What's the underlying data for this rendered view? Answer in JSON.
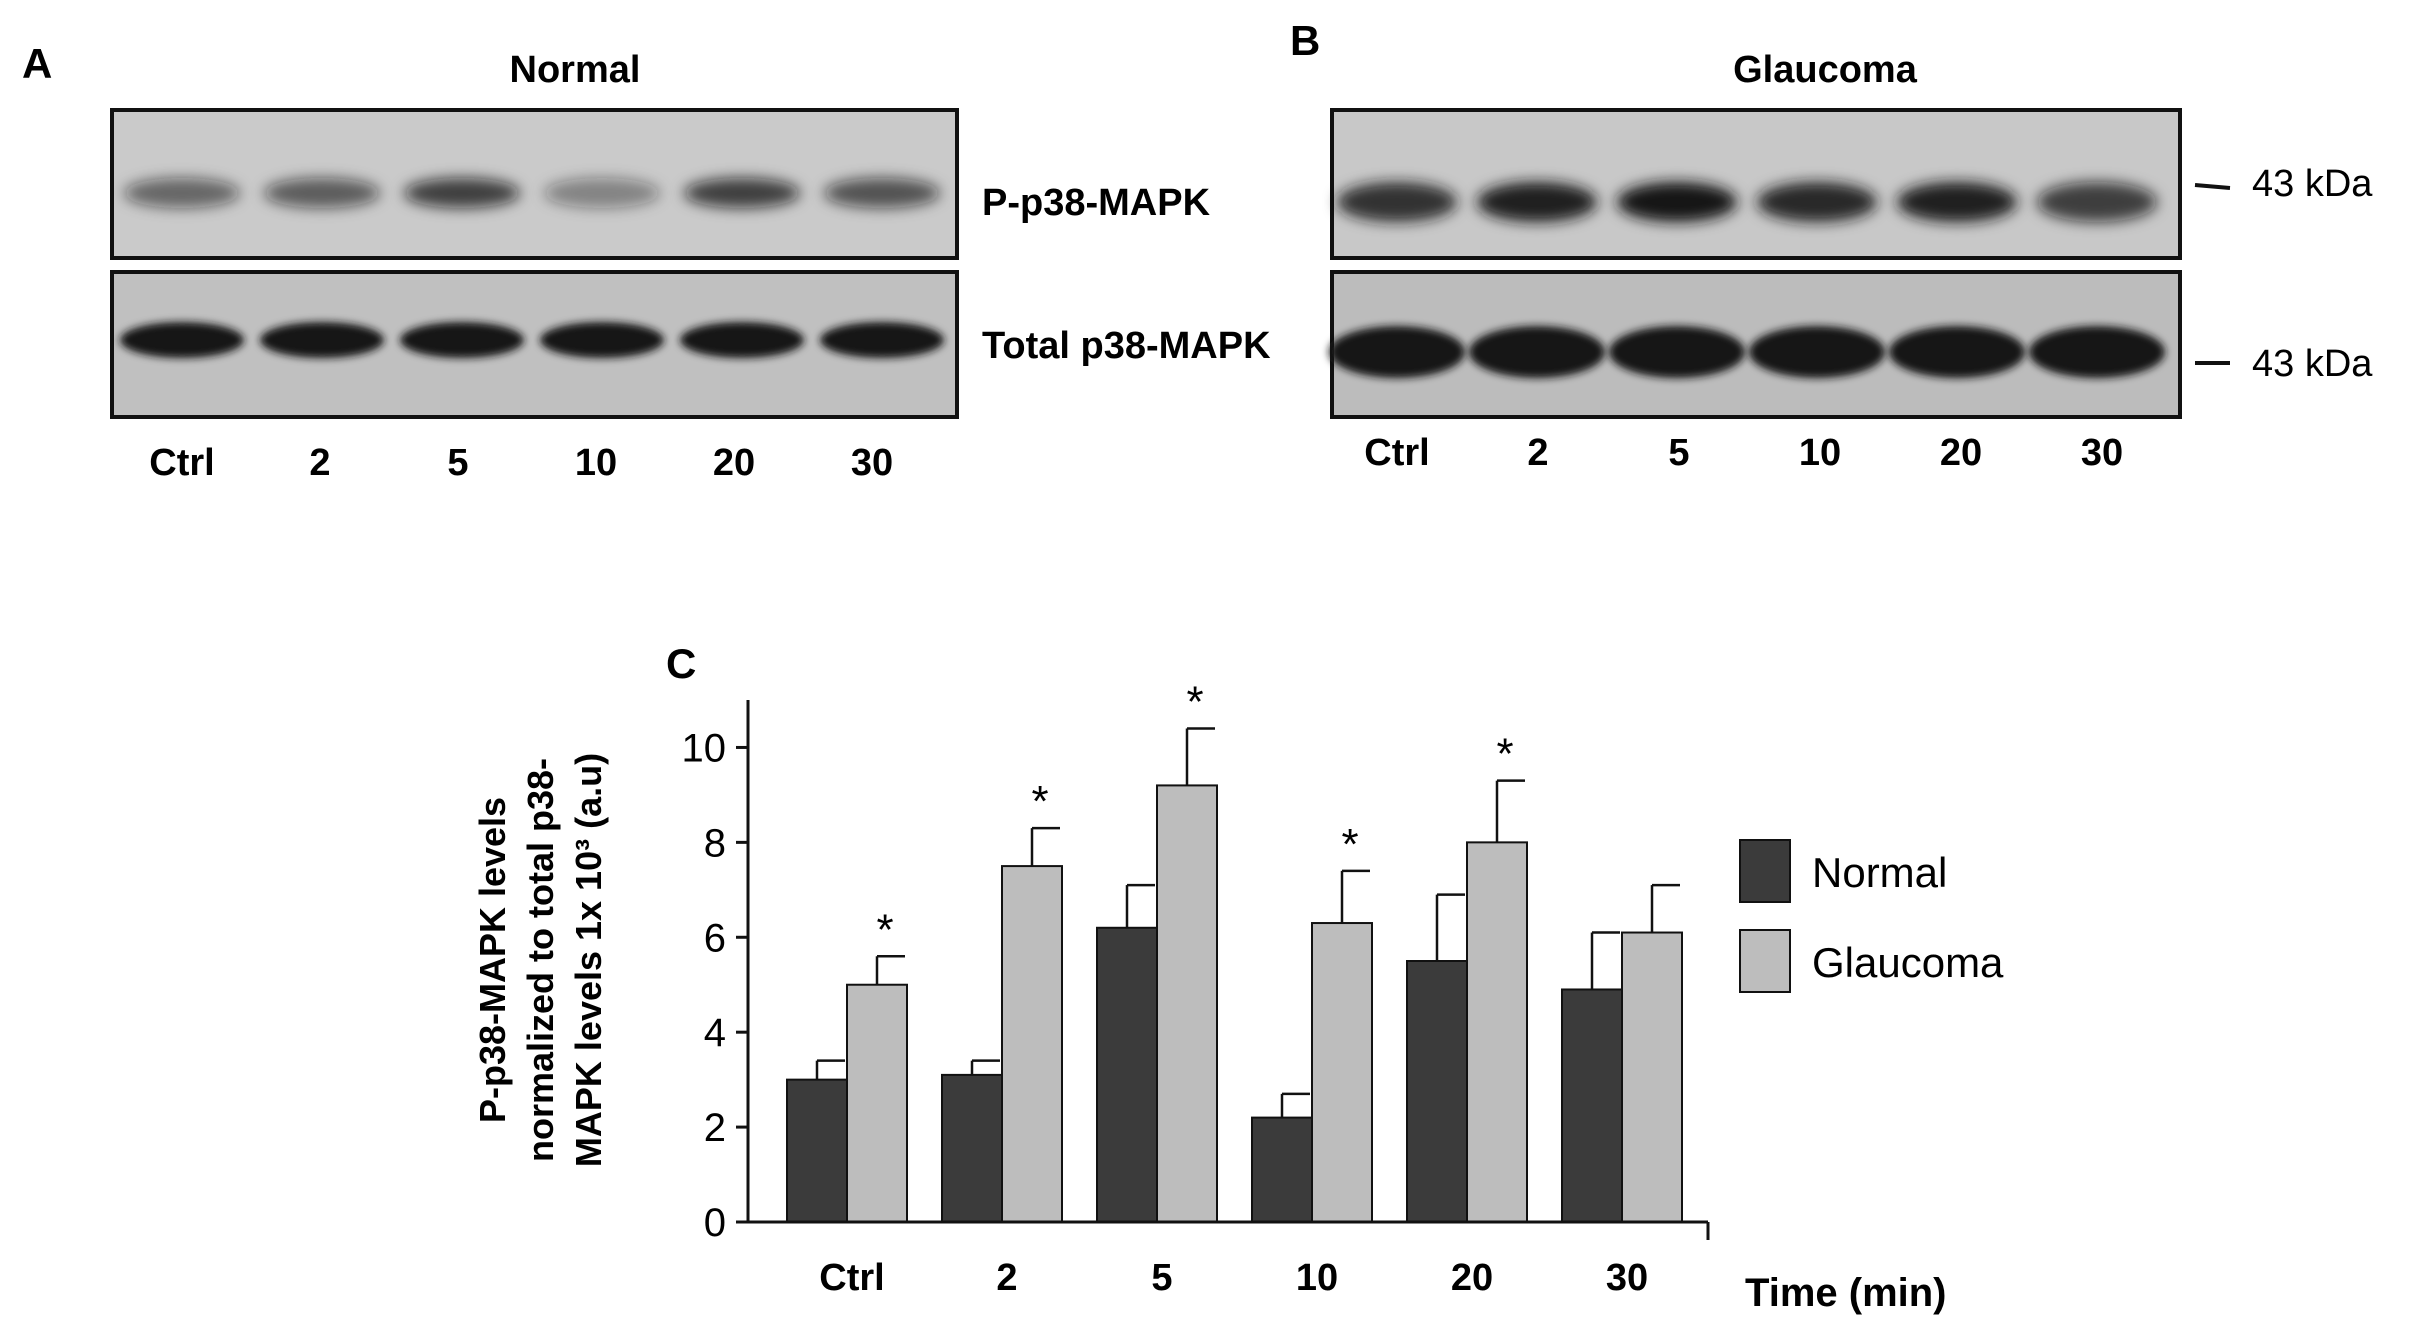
{
  "colors": {
    "normal": "#3b3b3b",
    "glaucoma": "#bdbdbd",
    "blot_bg": "#c4c4c4",
    "band": "#141414",
    "text": "#111111"
  },
  "panel_a": {
    "letter": "A",
    "title": "Normal",
    "labels": [
      "Ctrl",
      "2",
      "5",
      "10",
      "20",
      "30"
    ],
    "top_blot_label": "P-p38-MAPK",
    "bottom_blot_label": "Total p38-MAPK",
    "top_band_intensity": [
      0.55,
      0.6,
      0.75,
      0.4,
      0.75,
      0.65
    ],
    "bottom_band_intensity": [
      1,
      1,
      1,
      1,
      1,
      1
    ]
  },
  "panel_b": {
    "letter": "B",
    "title": "Glaucoma",
    "labels": [
      "Ctrl",
      "2",
      "5",
      "10",
      "20",
      "30"
    ],
    "marker_top": "43 kDa",
    "marker_bottom": "43 kDa",
    "top_band_intensity": [
      0.85,
      0.95,
      1.0,
      0.9,
      0.95,
      0.75
    ],
    "bottom_band_intensity": [
      1,
      1,
      1,
      1,
      1,
      1
    ]
  },
  "panel_c": {
    "letter": "C"
  },
  "chart_data": {
    "type": "bar",
    "categories": [
      "Ctrl",
      "2",
      "5",
      "10",
      "20",
      "30"
    ],
    "series": [
      {
        "name": "Normal",
        "values": [
          3.0,
          3.1,
          6.2,
          2.2,
          5.5,
          4.9
        ],
        "errors": [
          0.4,
          0.3,
          0.9,
          0.5,
          1.4,
          1.2
        ],
        "significant": [
          false,
          false,
          false,
          false,
          false,
          false
        ]
      },
      {
        "name": "Glaucoma",
        "values": [
          5.0,
          7.5,
          9.2,
          6.3,
          8.0,
          6.1
        ],
        "errors": [
          0.6,
          0.8,
          1.2,
          1.1,
          1.3,
          1.0
        ],
        "significant": [
          true,
          true,
          true,
          true,
          true,
          false
        ]
      }
    ],
    "significance_marker": "*",
    "ylabel_lines": [
      "P-p38-MAPK levels",
      "normalized to total p38-",
      "MAPK levels 1x 10³ (a.u)"
    ],
    "xlabel": "Time  (min)",
    "yticks": [
      "0",
      "2",
      "4",
      "6",
      "8",
      "10"
    ],
    "ylim": [
      0,
      11
    ],
    "grid": false,
    "legend_position": "right"
  }
}
